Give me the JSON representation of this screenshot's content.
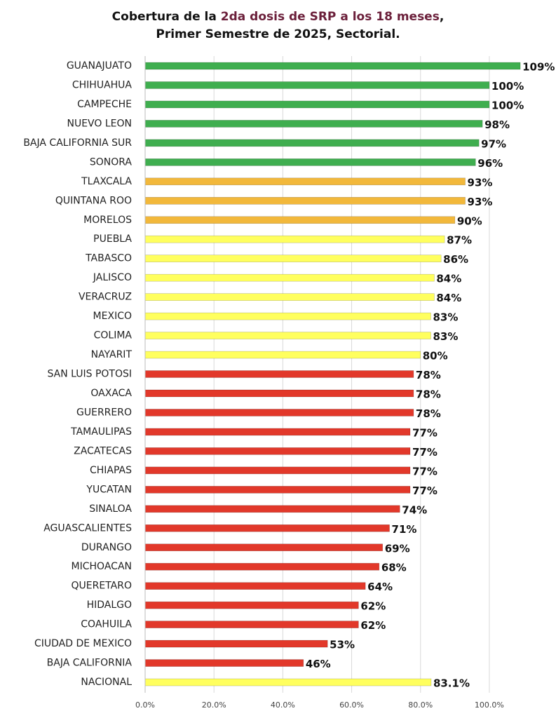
{
  "chart_data": {
    "type": "barh",
    "title": [
      "Cobertura de la",
      "2da dosis de SRP a los 18 meses",
      ","
    ],
    "title_color": "#6b1f3a",
    "subtitle": "Primer Semestre de 2025, Sectorial.",
    "categories": [
      "GUANAJUATO",
      "CHIHUAHUA",
      "CAMPECHE",
      "NUEVO LEON",
      "BAJA CALIFORNIA SUR",
      "SONORA",
      "TLAXCALA",
      "QUINTANA ROO",
      "MORELOS",
      "PUEBLA",
      "TABASCO",
      "JALISCO",
      "VERACRUZ",
      "MEXICO",
      "COLIMA",
      "NAYARIT",
      "SAN LUIS POTOSI",
      "OAXACA",
      "GUERRERO",
      "TAMAULIPAS",
      "ZACATECAS",
      "CHIAPAS",
      "YUCATAN",
      "SINALOA",
      "AGUASCALIENTES",
      "DURANGO",
      "MICHOACAN",
      "QUERETARO",
      "HIDALGO",
      "COAHUILA",
      "CIUDAD DE MEXICO",
      "BAJA CALIFORNIA",
      "NACIONAL"
    ],
    "values": [
      109,
      100,
      100,
      98,
      97,
      96,
      93,
      93,
      90,
      87,
      86,
      84,
      84,
      83,
      83,
      80,
      78,
      78,
      78,
      77,
      77,
      77,
      77,
      74,
      71,
      69,
      68,
      64,
      62,
      62,
      53,
      46,
      83.1
    ],
    "value_labels": [
      "109%",
      "100%",
      "100%",
      "98%",
      "97%",
      "96%",
      "93%",
      "93%",
      "90%",
      "87%",
      "86%",
      "84%",
      "84%",
      "83%",
      "83%",
      "80%",
      "78%",
      "78%",
      "78%",
      "77%",
      "77%",
      "77%",
      "77%",
      "74%",
      "71%",
      "69%",
      "68%",
      "64%",
      "62%",
      "62%",
      "53%",
      "46%",
      "83.1%"
    ],
    "colors": [
      "#3fae4f",
      "#3fae4f",
      "#3fae4f",
      "#3fae4f",
      "#3fae4f",
      "#3fae4f",
      "#f2b83b",
      "#f2b83b",
      "#f2b83b",
      "#ffff5e",
      "#ffff5e",
      "#ffff5e",
      "#ffff5e",
      "#ffff5e",
      "#ffff5e",
      "#ffff5e",
      "#e2382a",
      "#e2382a",
      "#e2382a",
      "#e2382a",
      "#e2382a",
      "#e2382a",
      "#e2382a",
      "#e2382a",
      "#e2382a",
      "#e2382a",
      "#e2382a",
      "#e2382a",
      "#e2382a",
      "#e2382a",
      "#e2382a",
      "#e2382a",
      "#ffff5e"
    ],
    "xlim": [
      0,
      110
    ],
    "xticks": [
      {
        "value": 0,
        "label": "0.0%"
      },
      {
        "value": 20,
        "label": "20.0%"
      },
      {
        "value": 40,
        "label": "40.0%"
      },
      {
        "value": 60,
        "label": "60.0%"
      },
      {
        "value": 80,
        "label": "80.0%"
      },
      {
        "value": 100,
        "label": "100.0%"
      }
    ],
    "grid": true
  }
}
